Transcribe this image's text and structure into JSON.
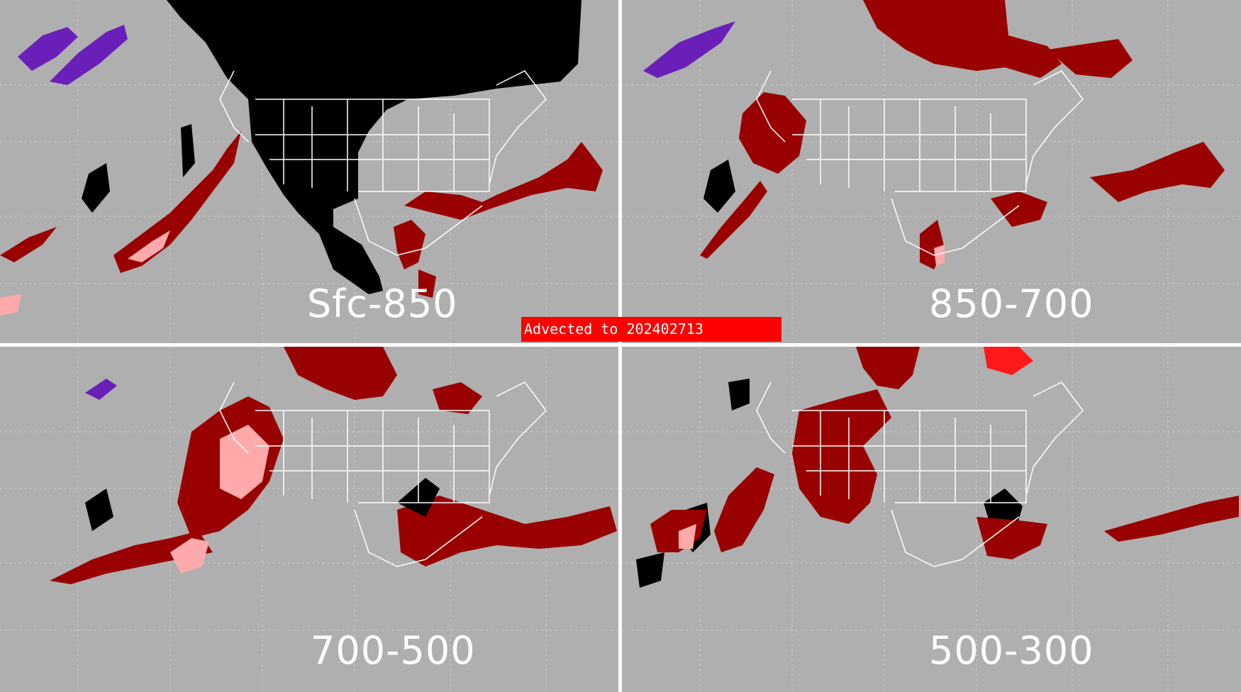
{
  "banner": {
    "text": "Advected to  202402713",
    "color": "#ff0000"
  },
  "panels": [
    {
      "id": "sfc-850",
      "label": "Sfc-850"
    },
    {
      "id": "850-700",
      "label": "850-700"
    },
    {
      "id": "700-500",
      "label": "700-500"
    },
    {
      "id": "500-300",
      "label": "500-300"
    }
  ],
  "colors": {
    "background": "#afafaf",
    "map_lines": "#ffffff",
    "black_region": "#000000",
    "dark_red": "#990000",
    "pink": "#ffaaaa",
    "purple": "#6a1fb8",
    "bright_red": "#ff1a1a"
  }
}
